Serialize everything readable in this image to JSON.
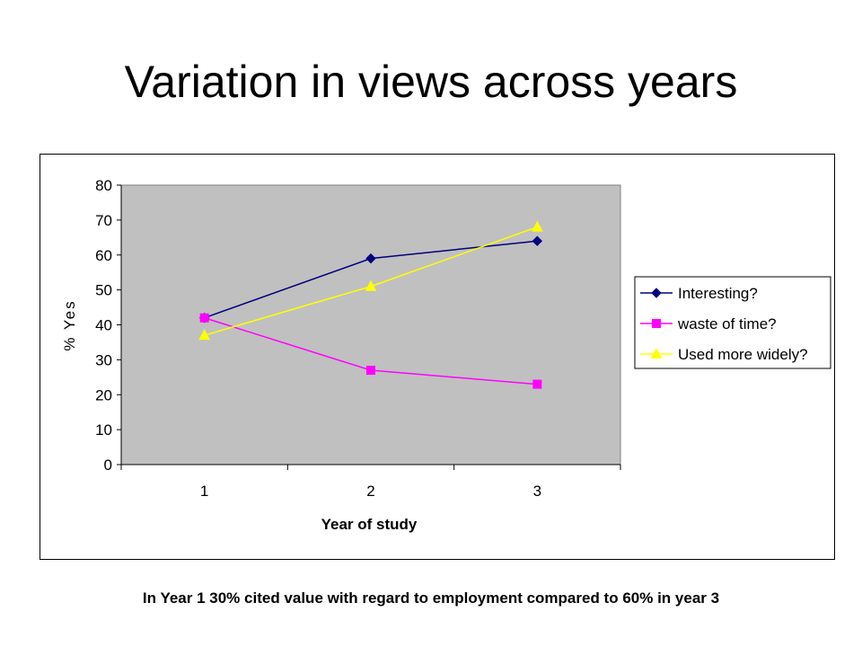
{
  "slide": {
    "title": "Variation in views across years",
    "caption": "In Year 1 30% cited value with regard to employment compared to 60% in year 3"
  },
  "chart_data": {
    "type": "line",
    "xlabel": "Year of study",
    "ylabel": "% Yes",
    "x": [
      1,
      2,
      3
    ],
    "categories": [
      "1",
      "2",
      "3"
    ],
    "ylim": [
      0,
      80
    ],
    "yticks": [
      0,
      10,
      20,
      30,
      40,
      50,
      60,
      70,
      80
    ],
    "grid": false,
    "plot_background": "#c0c0c0",
    "legend_position": "right",
    "series": [
      {
        "name": "Interesting?",
        "values": [
          42,
          59,
          64
        ],
        "color": "#000080",
        "marker": "diamond"
      },
      {
        "name": "waste of time?",
        "values": [
          42,
          27,
          23
        ],
        "color": "#ff00ff",
        "marker": "square"
      },
      {
        "name": "Used more widely?",
        "values": [
          37,
          51,
          68
        ],
        "color": "#ffff00",
        "marker": "triangle"
      }
    ]
  }
}
